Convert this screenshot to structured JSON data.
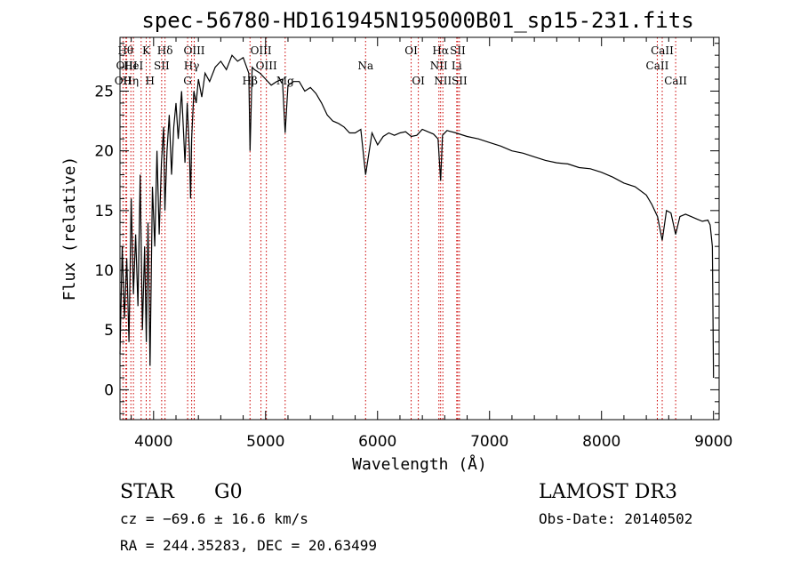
{
  "chart_data": {
    "type": "line",
    "title": "spec-56780-HD161945N195000B01_sp15-231.fits",
    "xlabel": "Wavelength (Å)",
    "ylabel": "Flux (relative)",
    "xlim": [
      3700,
      9050
    ],
    "ylim": [
      -2.5,
      29.5
    ],
    "xticks": [
      4000,
      5000,
      6000,
      7000,
      8000,
      9000
    ],
    "yticks": [
      0,
      5,
      10,
      15,
      20,
      25
    ],
    "series": [
      {
        "name": "spectrum",
        "x": [
          3700,
          3720,
          3740,
          3760,
          3780,
          3800,
          3820,
          3840,
          3860,
          3880,
          3900,
          3920,
          3935,
          3950,
          3968,
          3990,
          4010,
          4030,
          4050,
          4070,
          4090,
          4101,
          4120,
          4140,
          4160,
          4180,
          4200,
          4220,
          4250,
          4280,
          4300,
          4320,
          4330,
          4340,
          4360,
          4380,
          4400,
          4430,
          4460,
          4500,
          4550,
          4600,
          4650,
          4700,
          4750,
          4800,
          4850,
          4861,
          4880,
          4900,
          4950,
          5000,
          5050,
          5100,
          5150,
          5175,
          5200,
          5250,
          5300,
          5350,
          5400,
          5450,
          5500,
          5550,
          5600,
          5650,
          5700,
          5750,
          5800,
          5850,
          5893,
          5950,
          6000,
          6050,
          6100,
          6150,
          6200,
          6250,
          6300,
          6350,
          6400,
          6450,
          6500,
          6540,
          6563,
          6580,
          6620,
          6700,
          6800,
          6900,
          7000,
          7100,
          7200,
          7300,
          7400,
          7500,
          7600,
          7700,
          7800,
          7900,
          8000,
          8100,
          8200,
          8300,
          8400,
          8450,
          8500,
          8542,
          8580,
          8620,
          8662,
          8700,
          8750,
          8800,
          8850,
          8900,
          8950,
          8970,
          8990,
          9000
        ],
        "y": [
          3,
          12,
          6,
          11,
          4,
          16,
          8,
          13,
          7,
          18,
          5,
          12,
          4,
          14,
          2,
          17,
          12,
          20,
          13,
          19,
          22,
          15,
          20,
          23,
          18,
          22,
          24,
          21,
          25,
          19,
          24,
          20,
          16,
          21,
          25,
          24,
          26,
          24.5,
          26.5,
          25.8,
          27,
          27.5,
          26.8,
          28,
          27.5,
          27.8,
          26.5,
          20,
          27,
          26.8,
          26.5,
          26,
          25.5,
          25.8,
          26,
          21.5,
          25.5,
          25.8,
          25.8,
          25,
          25.3,
          24.8,
          24,
          23,
          22.5,
          22.3,
          22,
          21.5,
          21.5,
          21.8,
          18,
          21.5,
          20.5,
          21.2,
          21.5,
          21.3,
          21.5,
          21.6,
          21.2,
          21.3,
          21.8,
          21.6,
          21.4,
          21,
          17.5,
          21.3,
          21.7,
          21.5,
          21.2,
          21,
          20.7,
          20.4,
          20,
          19.8,
          19.5,
          19.2,
          19,
          18.9,
          18.6,
          18.5,
          18.2,
          17.8,
          17.3,
          17,
          16.3,
          15.5,
          14.5,
          12.5,
          15,
          14.8,
          13,
          14.5,
          14.7,
          14.5,
          14.3,
          14.1,
          14.2,
          13.8,
          12,
          1
        ]
      }
    ],
    "spectral_lines": [
      {
        "x": 3727,
        "label": "OII",
        "row": 2
      },
      {
        "x": 3750,
        "label": "Hθ",
        "row": 0
      },
      {
        "x": 3760,
        "label": "OIII",
        "row": 1
      },
      {
        "x": 3797,
        "label": "Hη",
        "row": 2
      },
      {
        "x": 3820,
        "label": "HeI",
        "row": 1
      },
      {
        "x": 3889,
        "label": "",
        "row": 0
      },
      {
        "x": 3934,
        "label": "K",
        "row": 0
      },
      {
        "x": 3968,
        "label": "H",
        "row": 2
      },
      {
        "x": 4072,
        "label": "SII",
        "row": 1
      },
      {
        "x": 4102,
        "label": "Hδ",
        "row": 0
      },
      {
        "x": 4304,
        "label": "G",
        "row": 2
      },
      {
        "x": 4340,
        "label": "Hγ",
        "row": 1
      },
      {
        "x": 4363,
        "label": "OIII",
        "row": 0
      },
      {
        "x": 4861,
        "label": "Hβ",
        "row": 2
      },
      {
        "x": 4959,
        "label": "OIII",
        "row": 0
      },
      {
        "x": 5007,
        "label": "OIII",
        "row": 1
      },
      {
        "x": 5175,
        "label": "Mg",
        "row": 2
      },
      {
        "x": 5893,
        "label": "Na",
        "row": 1
      },
      {
        "x": 6300,
        "label": "OI",
        "row": 0
      },
      {
        "x": 6364,
        "label": "OI",
        "row": 2
      },
      {
        "x": 6548,
        "label": "NII",
        "row": 1
      },
      {
        "x": 6563,
        "label": "Hα",
        "row": 0
      },
      {
        "x": 6583,
        "label": "NII",
        "row": 2
      },
      {
        "x": 6707,
        "label": "Li",
        "row": 1
      },
      {
        "x": 6716,
        "label": "SII",
        "row": 0
      },
      {
        "x": 6731,
        "label": "SII",
        "row": 2
      },
      {
        "x": 8498,
        "label": "CaII",
        "row": 1
      },
      {
        "x": 8542,
        "label": "CaII",
        "row": 0
      },
      {
        "x": 8662,
        "label": "CaII",
        "row": 2
      }
    ],
    "line_color": "#cc0000",
    "spectrum_color": "#000000"
  },
  "info": {
    "class": "STAR",
    "subclass": "G0",
    "survey": "LAMOST DR3",
    "cz": "cz = −69.6 ± 16.6 km/s",
    "obs_date": "Obs-Date: 20140502",
    "coords": "RA = 244.35283, DEC =  20.63499"
  }
}
